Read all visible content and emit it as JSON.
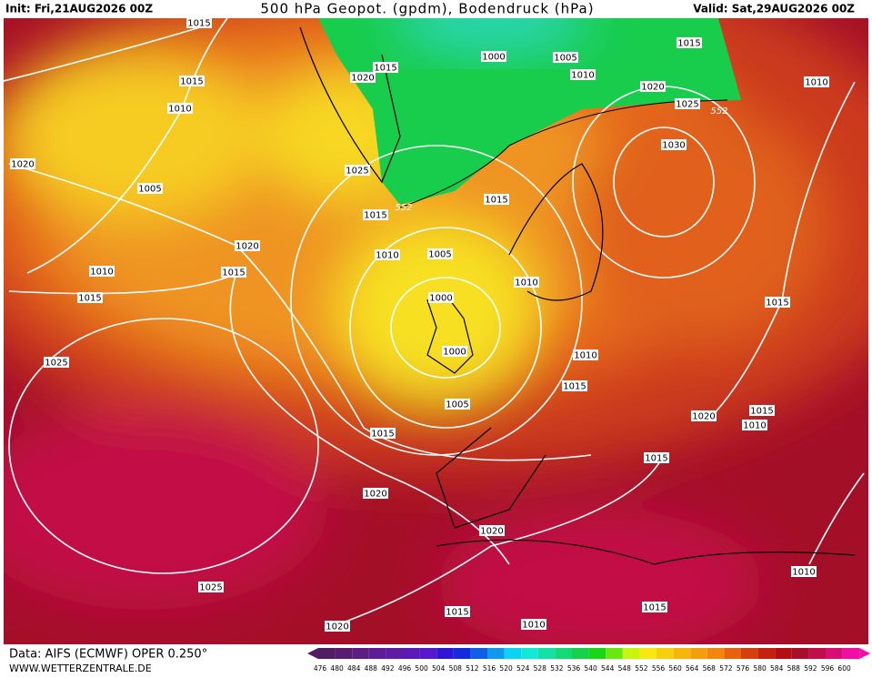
{
  "header": {
    "init": "Init: Fri,21AUG2026 00Z",
    "title": "500 hPa Geopot. (gpdm), Bodendruck (hPa)",
    "valid": "Valid: Sat,29AUG2026 00Z"
  },
  "isobar_labels": [
    "1015",
    "1015",
    "1010",
    "1020",
    "1005",
    "1020",
    "1010",
    "1015",
    "1015",
    "1025",
    "1020",
    "1015",
    "1025",
    "1015",
    "1010",
    "1005",
    "1000",
    "1000",
    "1005",
    "1015",
    "1020",
    "1020",
    "1025",
    "1015",
    "1020",
    "1010",
    "1015",
    "1010",
    "1015",
    "1020",
    "1010",
    "1015",
    "1015",
    "1010",
    "1010",
    "1015",
    "1000",
    "1005",
    "1010",
    "1020",
    "1015",
    "1025",
    "1030",
    "1010",
    "1015"
  ],
  "contour_labels": [
    "552",
    "552"
  ],
  "color_scale": {
    "labels": [
      "476",
      "480",
      "484",
      "488",
      "492",
      "496",
      "500",
      "504",
      "508",
      "512",
      "516",
      "520",
      "524",
      "528",
      "532",
      "536",
      "540",
      "544",
      "548",
      "552",
      "556",
      "560",
      "564",
      "568",
      "572",
      "576",
      "580",
      "584",
      "588",
      "592",
      "596",
      "600"
    ]
  },
  "footer": {
    "data": "Data: AIFS (ECMWF) OPER 0.250°",
    "site": "WWW.WETTERZENTRALE.DE"
  }
}
